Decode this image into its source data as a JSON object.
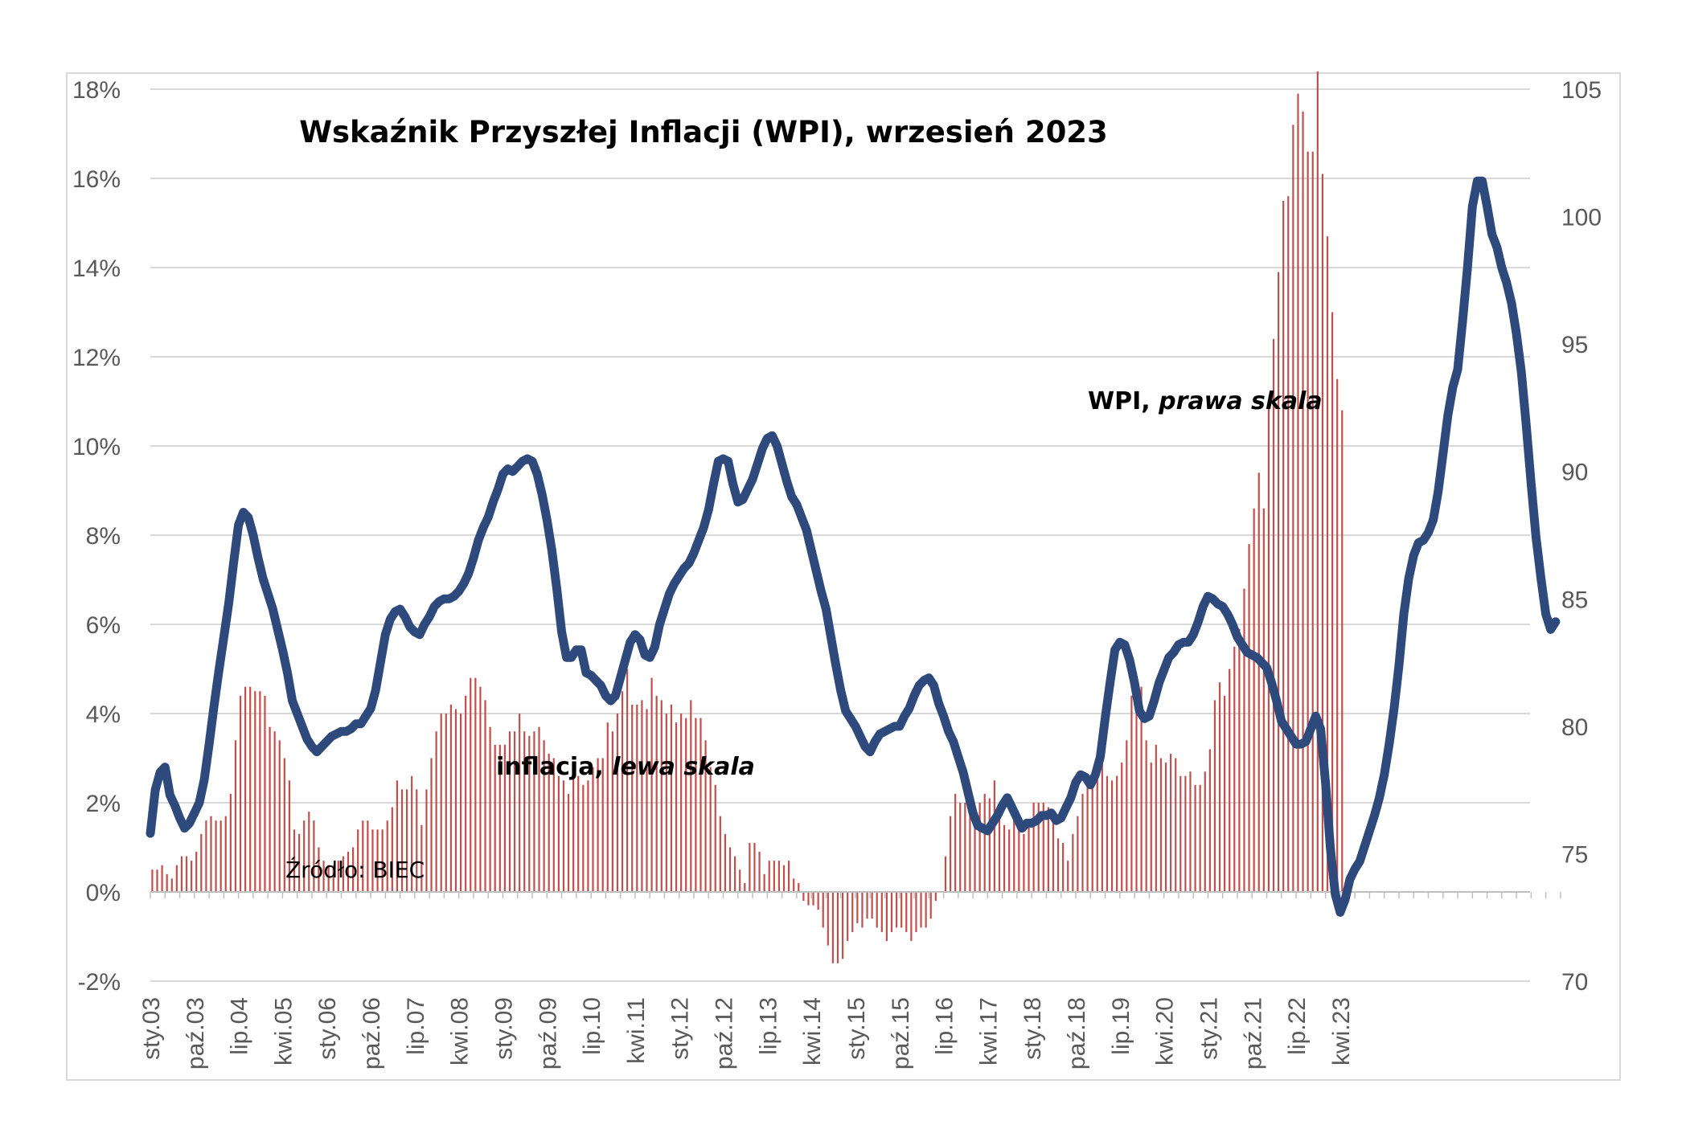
{
  "chart_data": {
    "type": "line",
    "title": "Wskaźnik Przyszłej Inflacji (WPI), wrzesień 2023",
    "source": "Źródło: BIEC",
    "x_start": "2003-01",
    "x_frequency": "monthly",
    "x_tick_labels": [
      "sty.03",
      "paź.03",
      "lip.04",
      "kwi.05",
      "sty.06",
      "paź.06",
      "lip.07",
      "kwi.08",
      "sty.09",
      "paź.09",
      "lip.10",
      "kwi.11",
      "sty.12",
      "paź.12",
      "lip.13",
      "kwi.14",
      "sty.15",
      "paź.15",
      "lip.16",
      "kwi.17",
      "sty.18",
      "paź.18",
      "lip.19",
      "kwi.20",
      "sty.21",
      "paź.21",
      "lip.22",
      "kwi.23"
    ],
    "y_left": {
      "ticks": [
        "-2%",
        "0%",
        "2%",
        "4%",
        "6%",
        "8%",
        "10%",
        "12%",
        "14%",
        "16%",
        "18%"
      ],
      "min": -2,
      "max": 18
    },
    "y_right": {
      "ticks": [
        "70",
        "75",
        "80",
        "85",
        "90",
        "95",
        "100",
        "105"
      ],
      "min": 70,
      "max": 105
    },
    "grid": true,
    "series": [
      {
        "name": "inflacja",
        "annotation": [
          "inflacja, ",
          "lewa skala"
        ],
        "type": "bar",
        "axis": "left",
        "color": "#c0504d",
        "values": [
          0.5,
          0.5,
          0.6,
          0.4,
          0.3,
          0.6,
          0.8,
          0.8,
          0.7,
          0.9,
          1.3,
          1.6,
          1.7,
          1.6,
          1.6,
          1.7,
          2.2,
          3.4,
          4.4,
          4.6,
          4.6,
          4.5,
          4.5,
          4.4,
          3.7,
          3.6,
          3.4,
          3.0,
          2.5,
          1.4,
          1.3,
          1.6,
          1.8,
          1.6,
          1.0,
          0.7,
          0.6,
          0.6,
          0.7,
          0.8,
          0.9,
          1.0,
          1.4,
          1.6,
          1.6,
          1.4,
          1.4,
          1.4,
          1.6,
          1.9,
          2.5,
          2.3,
          2.3,
          2.6,
          2.3,
          1.5,
          2.3,
          3.0,
          3.6,
          4.0,
          4.0,
          4.2,
          4.1,
          4.0,
          4.4,
          4.8,
          4.8,
          4.6,
          4.3,
          3.7,
          3.3,
          3.3,
          3.3,
          3.6,
          3.6,
          4.0,
          3.6,
          3.5,
          3.6,
          3.7,
          3.4,
          3.1,
          3.0,
          2.6,
          2.5,
          2.2,
          2.6,
          2.6,
          2.4,
          2.5,
          2.8,
          3.0,
          3.0,
          3.8,
          3.6,
          4.0,
          4.5,
          5.0,
          4.2,
          4.2,
          4.3,
          4.1,
          4.8,
          4.4,
          4.3,
          4.0,
          4.2,
          3.8,
          4.0,
          3.9,
          4.3,
          3.9,
          3.9,
          3.4,
          2.8,
          2.4,
          1.7,
          1.3,
          1.0,
          0.8,
          0.5,
          0.2,
          1.1,
          1.1,
          0.9,
          0.4,
          0.7,
          0.7,
          0.7,
          0.6,
          0.7,
          0.3,
          0.2,
          -0.2,
          -0.3,
          -0.3,
          -0.4,
          -0.8,
          -1.2,
          -1.6,
          -1.6,
          -1.5,
          -1.1,
          -0.9,
          -0.7,
          -0.8,
          -0.6,
          -0.6,
          -0.8,
          -0.9,
          -1.1,
          -0.9,
          -0.8,
          -0.8,
          -0.9,
          -1.1,
          -0.9,
          -0.8,
          -0.8,
          -0.6,
          -0.2,
          0.0,
          0.8,
          1.7,
          2.2,
          2.0,
          2.0,
          1.9,
          1.8,
          2.0,
          2.2,
          2.1,
          2.5,
          1.9,
          1.5,
          1.4,
          1.7,
          1.6,
          1.3,
          1.6,
          2.0,
          2.0,
          2.0,
          1.9,
          1.8,
          1.2,
          1.1,
          0.7,
          1.3,
          1.7,
          2.2,
          2.4,
          2.6,
          2.9,
          2.9,
          2.6,
          2.5,
          2.6,
          2.9,
          3.4,
          4.4,
          4.7,
          4.6,
          3.4,
          2.9,
          3.3,
          3.0,
          2.9,
          3.1,
          3.0,
          2.6,
          2.6,
          2.7,
          2.4,
          2.4,
          2.7,
          3.2,
          4.3,
          4.7,
          4.4,
          5.0,
          5.5,
          5.9,
          6.8,
          7.8,
          8.6,
          9.4,
          8.6,
          11.0,
          12.4,
          13.9,
          15.5,
          15.6,
          17.2,
          17.9,
          17.5,
          16.6,
          16.6,
          18.4,
          16.1,
          14.7,
          13.0,
          11.5,
          10.8
        ]
      },
      {
        "name": "WPI",
        "annotation": [
          "WPI, ",
          "prawa skala"
        ],
        "type": "line",
        "axis": "right",
        "color": "#2e4a7d",
        "values": [
          75.8,
          77.5,
          78.2,
          78.4,
          77.3,
          76.9,
          76.4,
          76.0,
          76.2,
          76.6,
          77.0,
          77.9,
          79.3,
          80.8,
          82.2,
          83.5,
          84.8,
          86.4,
          87.9,
          88.4,
          88.2,
          87.5,
          86.6,
          85.8,
          85.2,
          84.6,
          83.8,
          83.0,
          82.1,
          81.0,
          80.5,
          80.0,
          79.5,
          79.2,
          79.0,
          79.2,
          79.4,
          79.6,
          79.7,
          79.8,
          79.8,
          79.9,
          80.1,
          80.1,
          80.4,
          80.7,
          81.4,
          82.5,
          83.6,
          84.2,
          84.5,
          84.6,
          84.3,
          83.9,
          83.7,
          83.6,
          84.0,
          84.3,
          84.7,
          84.9,
          85.0,
          85.0,
          85.1,
          85.3,
          85.6,
          86.0,
          86.6,
          87.3,
          87.8,
          88.2,
          88.8,
          89.3,
          89.9,
          90.1,
          90.0,
          90.2,
          90.4,
          90.5,
          90.4,
          89.9,
          89.1,
          88.1,
          86.9,
          85.4,
          83.7,
          82.7,
          82.7,
          83.0,
          83.0,
          82.1,
          82.0,
          81.8,
          81.6,
          81.2,
          81.0,
          81.2,
          81.9,
          82.6,
          83.3,
          83.6,
          83.4,
          82.8,
          82.7,
          83.1,
          84.0,
          84.6,
          85.2,
          85.6,
          85.9,
          86.2,
          86.4,
          86.8,
          87.3,
          87.8,
          88.5,
          89.5,
          90.4,
          90.5,
          90.4,
          89.5,
          88.8,
          88.9,
          89.3,
          89.7,
          90.3,
          90.9,
          91.3,
          91.4,
          91.0,
          90.3,
          89.6,
          89.0,
          88.7,
          88.2,
          87.7,
          86.9,
          86.1,
          85.3,
          84.6,
          83.5,
          82.4,
          81.4,
          80.6,
          80.3,
          80.0,
          79.6,
          79.2,
          79.0,
          79.4,
          79.7,
          79.8,
          79.9,
          80.0,
          80.0,
          80.4,
          80.7,
          81.2,
          81.6,
          81.8,
          81.9,
          81.6,
          80.9,
          80.4,
          79.8,
          79.4,
          78.8,
          78.2,
          77.4,
          76.6,
          76.1,
          76.0,
          75.9,
          76.2,
          76.5,
          76.9,
          77.2,
          76.8,
          76.4,
          76.0,
          76.2,
          76.2,
          76.3,
          76.5,
          76.5,
          76.6,
          76.3,
          76.4,
          76.8,
          77.2,
          77.8,
          78.1,
          78.0,
          77.7,
          78.1,
          78.8,
          80.3,
          81.7,
          83.0,
          83.3,
          83.2,
          82.6,
          81.7,
          80.6,
          80.3,
          80.4,
          81.0,
          81.7,
          82.2,
          82.7,
          82.9,
          83.2,
          83.3,
          83.3,
          83.6,
          84.1,
          84.7,
          85.1,
          85.0,
          84.8,
          84.7,
          84.4,
          84.0,
          83.5,
          83.2,
          82.9,
          82.8,
          82.7,
          82.5,
          82.3,
          81.7,
          81.0,
          80.2,
          79.9,
          79.6,
          79.3,
          79.3,
          79.4,
          79.9,
          80.4,
          79.9,
          77.8,
          75.2,
          73.4,
          72.7,
          73.2,
          74.0,
          74.4,
          74.7,
          75.3,
          75.9,
          76.5,
          77.2,
          78.1,
          79.3,
          80.7,
          82.4,
          84.4,
          85.8,
          86.7,
          87.2,
          87.3,
          87.6,
          88.1,
          89.2,
          90.7,
          92.2,
          93.3,
          94.0,
          95.9,
          98.0,
          100.4,
          101.4,
          101.4,
          100.4,
          99.3,
          98.8,
          98.0,
          97.4,
          96.6,
          95.4,
          93.9,
          91.8,
          89.5,
          87.4,
          85.8,
          84.4,
          83.8,
          84.1
        ]
      }
    ]
  },
  "colors": {
    "bar": "#c0504d",
    "line": "#2e4a7d",
    "grid": "#d9d9d9",
    "axis": "#bfbfbf",
    "tick_label": "#595959"
  }
}
